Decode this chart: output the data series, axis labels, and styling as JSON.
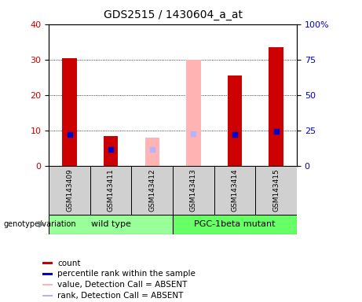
{
  "title": "GDS2515 / 1430604_a_at",
  "samples": [
    "GSM143409",
    "GSM143411",
    "GSM143412",
    "GSM143413",
    "GSM143414",
    "GSM143415"
  ],
  "count_values": [
    30.5,
    8.5,
    null,
    null,
    25.5,
    33.5
  ],
  "rank_values": [
    22.5,
    12.0,
    null,
    null,
    22.5,
    24.5
  ],
  "count_absent": [
    null,
    null,
    8.0,
    30.0,
    null,
    null
  ],
  "rank_absent": [
    null,
    null,
    11.5,
    23.0,
    null,
    null
  ],
  "ylim_left": [
    0,
    40
  ],
  "ylim_right": [
    0,
    100
  ],
  "yticks_left": [
    0,
    10,
    20,
    30,
    40
  ],
  "ytick_labels_left": [
    "0",
    "10",
    "20",
    "30",
    "40"
  ],
  "yticks_right_vals": [
    0,
    25,
    50,
    75,
    100
  ],
  "ytick_labels_right": [
    "0",
    "25",
    "50",
    "75",
    "100%"
  ],
  "color_count": "#cc0000",
  "color_rank": "#0000cc",
  "color_count_absent": "#ffb3b3",
  "color_rank_absent": "#b3b3ff",
  "group_labels": [
    "wild type",
    "PGC-1beta mutant"
  ],
  "group_colors": [
    "#99ff99",
    "#66ff66"
  ],
  "sample_bg_color": "#d0d0d0",
  "legend_items": [
    {
      "label": "count",
      "color": "#cc0000"
    },
    {
      "label": "percentile rank within the sample",
      "color": "#0000cc"
    },
    {
      "label": "value, Detection Call = ABSENT",
      "color": "#ffb3b3"
    },
    {
      "label": "rank, Detection Call = ABSENT",
      "color": "#b3b3ff"
    }
  ],
  "bar_width": 0.35
}
